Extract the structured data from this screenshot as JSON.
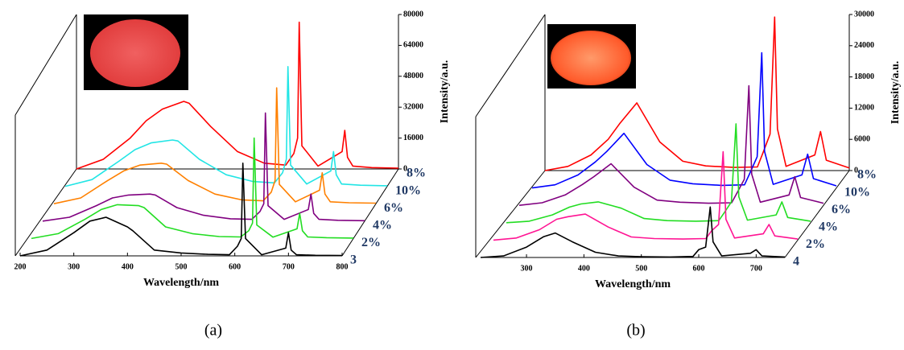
{
  "chart_data": [
    {
      "type": "line",
      "caption": "(a)",
      "xlabel": "Wavelength/nm",
      "ylabel": "Intensity/a.u.",
      "x": [
        200,
        250,
        300,
        330,
        360,
        400,
        410,
        450,
        500,
        550,
        590,
        605,
        612,
        615,
        620,
        650,
        695,
        700,
        705,
        715,
        750,
        800
      ],
      "xlim": [
        200,
        800
      ],
      "xticks": [
        200,
        300,
        400,
        500,
        600,
        700,
        800
      ],
      "ylim": [
        0,
        80000
      ],
      "yticks": [
        0,
        16000,
        32000,
        48000,
        64000,
        80000
      ],
      "series": [
        {
          "name": "3",
          "color": "#000000",
          "values": [
            0,
            3000,
            12000,
            18000,
            20000,
            15000,
            13000,
            3000,
            1500,
            800,
            600,
            5000,
            9000,
            48000,
            9000,
            600,
            4000,
            12000,
            3000,
            600,
            300,
            200
          ]
        },
        {
          "name": "2%",
          "color": "#22dd22",
          "values": [
            0,
            2500,
            10000,
            15000,
            17500,
            17000,
            16000,
            6000,
            2500,
            1000,
            800,
            4000,
            8000,
            52000,
            7000,
            700,
            5000,
            13000,
            4000,
            800,
            400,
            200
          ]
        },
        {
          "name": "4%",
          "color": "#800080",
          "values": [
            0,
            2000,
            8000,
            12000,
            13500,
            14000,
            13500,
            7000,
            3000,
            1200,
            900,
            5000,
            9000,
            56000,
            8000,
            900,
            6000,
            14000,
            4000,
            900,
            400,
            200
          ]
        },
        {
          "name": "6%",
          "color": "#ff8000",
          "values": [
            0,
            3000,
            12000,
            17000,
            20000,
            21000,
            20500,
            12000,
            5000,
            2000,
            1500,
            6000,
            12000,
            60000,
            10000,
            1000,
            7000,
            16000,
            5000,
            1000,
            500,
            300
          ]
        },
        {
          "name": "10%",
          "color": "#22e5e5",
          "values": [
            0,
            3500,
            13000,
            19000,
            22500,
            24000,
            23500,
            14000,
            6000,
            2500,
            1800,
            7000,
            14000,
            62000,
            11000,
            1200,
            8000,
            18000,
            6000,
            1200,
            600,
            300
          ]
        },
        {
          "name": "8%",
          "color": "#ff0000",
          "values": [
            0,
            5000,
            16000,
            25000,
            31000,
            35000,
            34000,
            22000,
            9000,
            3000,
            2000,
            8000,
            16000,
            76000,
            12000,
            1500,
            9000,
            20000,
            6000,
            1500,
            700,
            400
          ]
        }
      ]
    },
    {
      "type": "line",
      "caption": "(b)",
      "xlabel": "Wavelength/nm",
      "ylabel": "Intensity/a.u.",
      "x": [
        220,
        260,
        300,
        330,
        350,
        380,
        420,
        460,
        500,
        550,
        590,
        600,
        612,
        620,
        625,
        640,
        690,
        700,
        710,
        750
      ],
      "xlim": [
        220,
        750
      ],
      "xticks": [
        300,
        400,
        500,
        600,
        700
      ],
      "ylim": [
        0,
        30000
      ],
      "yticks": [
        0,
        6000,
        12000,
        18000,
        24000,
        30000
      ],
      "series": [
        {
          "name": "4",
          "color": "#000000",
          "values": [
            0,
            300,
            2000,
            4000,
            4700,
            3000,
            1000,
            300,
            150,
            100,
            200,
            1500,
            2000,
            9700,
            3000,
            300,
            800,
            1500,
            300,
            100
          ]
        },
        {
          "name": "2%",
          "color": "#ff1493",
          "values": [
            0,
            400,
            2000,
            4000,
            4500,
            5000,
            2500,
            600,
            300,
            200,
            300,
            1800,
            3000,
            17000,
            4000,
            400,
            1200,
            3000,
            800,
            200
          ]
        },
        {
          "name": "4%",
          "color": "#22dd22",
          "values": [
            0,
            300,
            1500,
            3000,
            3600,
            4000,
            2800,
            800,
            400,
            300,
            400,
            2000,
            4000,
            19000,
            5000,
            500,
            1500,
            4000,
            1000,
            300
          ]
        },
        {
          "name": "6%",
          "color": "#800080",
          "values": [
            0,
            500,
            2000,
            4000,
            5500,
            8000,
            3500,
            1000,
            600,
            400,
            500,
            2500,
            5000,
            23000,
            6000,
            600,
            2000,
            5500,
            1500,
            400
          ]
        },
        {
          "name": "10%",
          "color": "#0000ff",
          "values": [
            0,
            600,
            2500,
            5000,
            7000,
            10500,
            4500,
            1500,
            800,
            500,
            600,
            3000,
            6000,
            26000,
            7000,
            700,
            2500,
            6500,
            1800,
            400
          ]
        },
        {
          "name": "8%",
          "color": "#ff0000",
          "values": [
            0,
            800,
            3000,
            6000,
            9000,
            13000,
            5500,
            1800,
            900,
            600,
            700,
            3500,
            7000,
            29500,
            8000,
            800,
            3000,
            7500,
            2000,
            500
          ]
        }
      ]
    }
  ]
}
